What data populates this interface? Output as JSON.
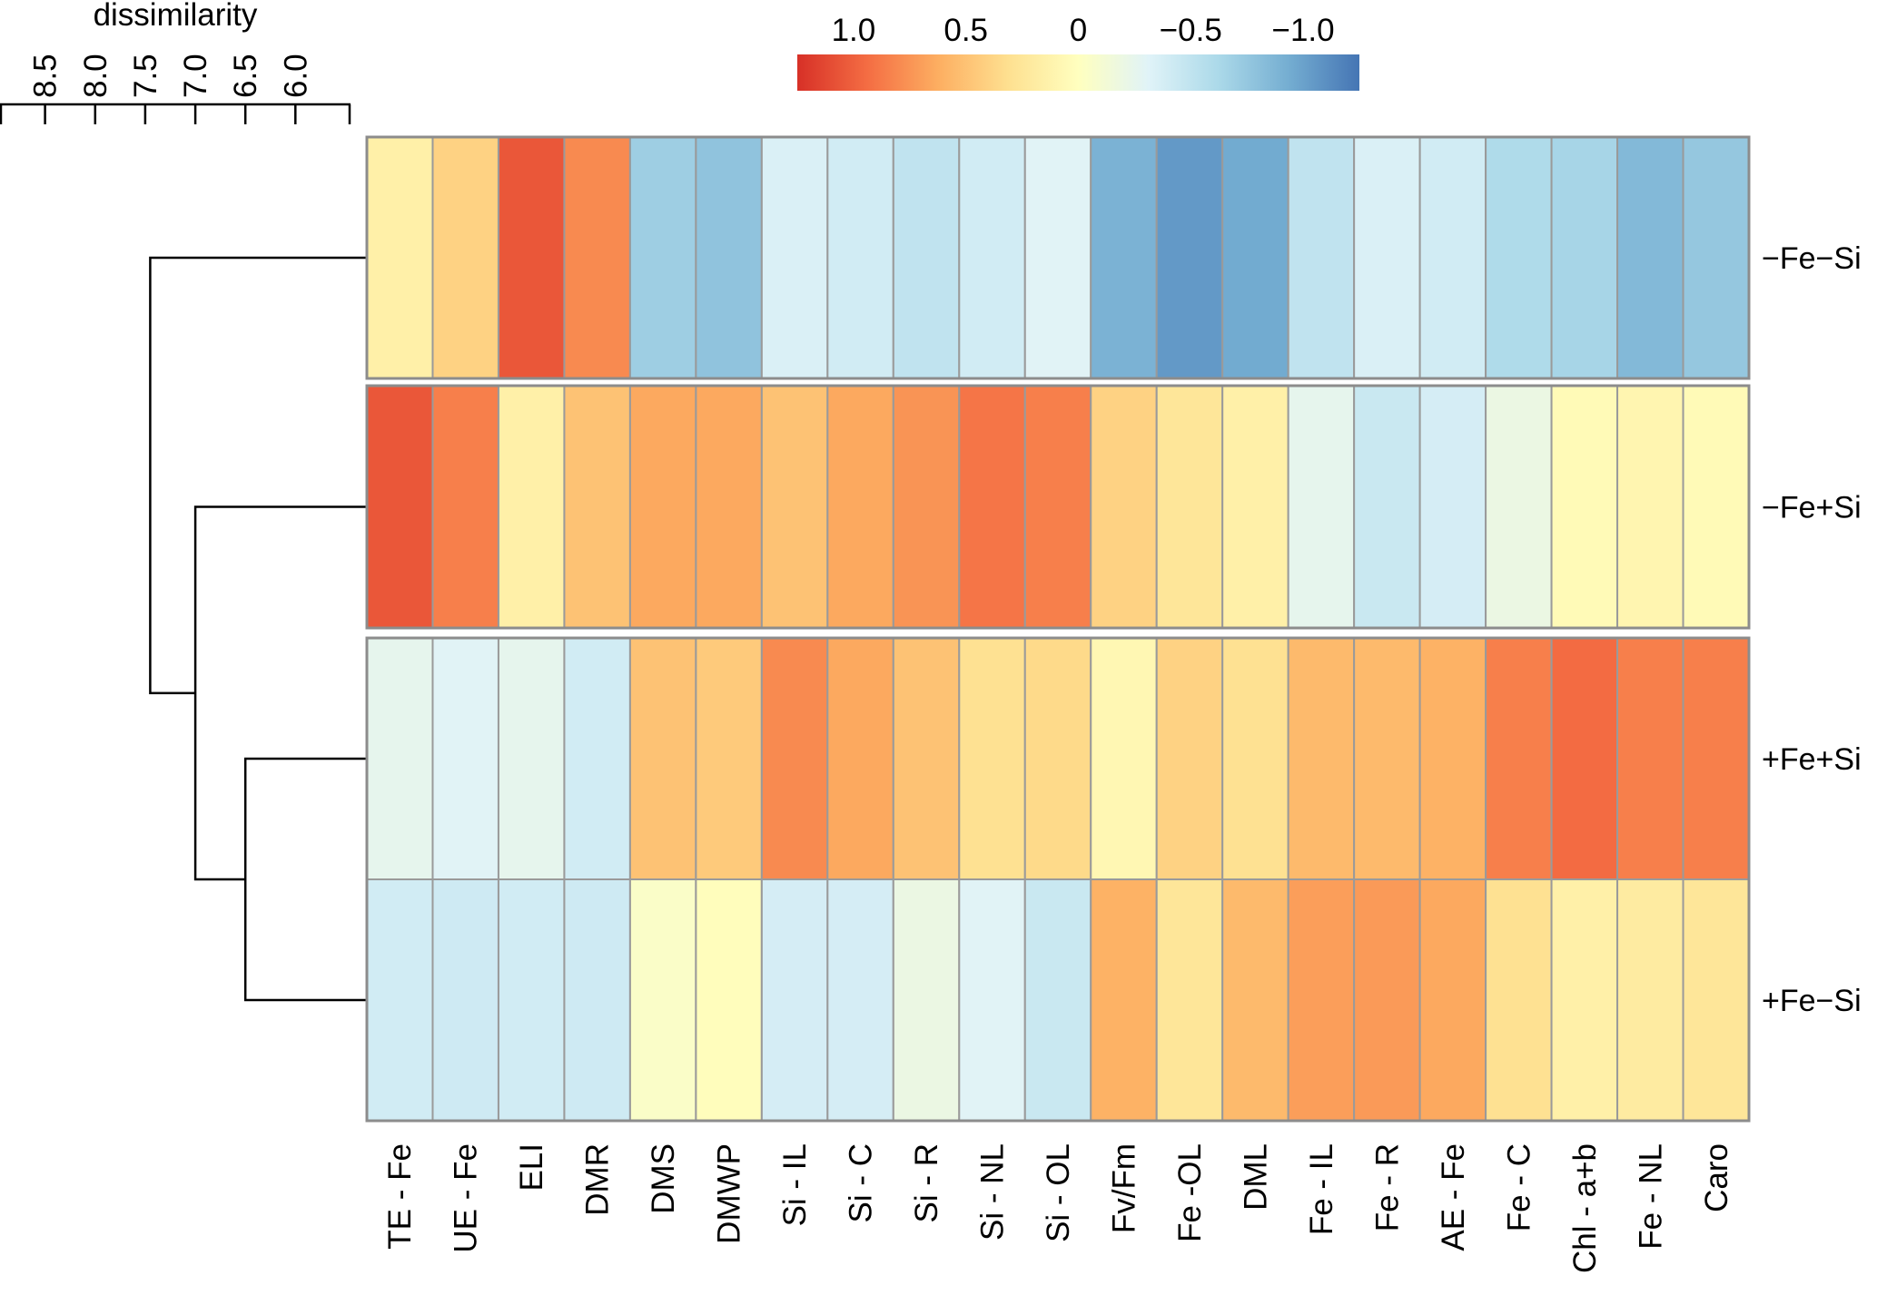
{
  "chart_data": {
    "type": "heatmap",
    "rows": [
      "−Fe−Si",
      "−Fe+Si",
      "+Fe+Si",
      "+Fe−Si"
    ],
    "columns": [
      "TE - Fe",
      "UE - Fe",
      "ELI",
      "DMR",
      "DMS",
      "DMWP",
      "Si - IL",
      "Si - C",
      "Si - R",
      "Si - NL",
      "Si - OL",
      "Fv/Fm",
      "Fe -OL",
      "DML",
      "Fe - IL",
      "Fe - R",
      "AE - Fe",
      "Fe - C",
      "Chl - a+b",
      "Fe - NL",
      "Caro"
    ],
    "values": [
      [
        0.15,
        0.4,
        1.05,
        0.8,
        -0.7,
        -0.78,
        -0.35,
        -0.4,
        -0.5,
        -0.4,
        -0.3,
        -0.9,
        -1.05,
        -0.95,
        -0.5,
        -0.35,
        -0.4,
        -0.6,
        -0.65,
        -0.85,
        -0.75
      ],
      [
        1.05,
        0.85,
        0.15,
        0.5,
        0.65,
        0.65,
        0.5,
        0.65,
        0.75,
        0.9,
        0.85,
        0.4,
        0.25,
        0.15,
        -0.25,
        -0.45,
        -0.38,
        -0.2,
        0.05,
        0.1,
        0.05
      ],
      [
        -0.25,
        -0.3,
        -0.25,
        -0.4,
        0.5,
        0.45,
        0.8,
        0.65,
        0.5,
        0.3,
        0.35,
        0.08,
        0.4,
        0.3,
        0.55,
        0.55,
        0.6,
        0.85,
        0.95,
        0.85,
        0.85
      ],
      [
        -0.4,
        -0.42,
        -0.4,
        -0.42,
        -0.05,
        0.02,
        -0.38,
        -0.38,
        -0.2,
        -0.3,
        -0.45,
        0.6,
        0.25,
        0.55,
        0.7,
        0.72,
        0.65,
        0.3,
        0.15,
        0.2,
        0.25
      ]
    ],
    "colorbar": {
      "ticks": [
        "1.0",
        "0.5",
        "0",
        "−0.5",
        "−1.0"
      ],
      "range": [
        1.25,
        -1.25
      ]
    },
    "dendrogram": {
      "axis_title": "dissimilarity",
      "ticks": [
        "8.5",
        "8.0",
        "7.5",
        "7.0",
        "6.5",
        "6.0"
      ],
      "tick_values": [
        8.5,
        8.0,
        7.5,
        7.0,
        6.5,
        6.0
      ],
      "axis_range": [
        8.95,
        5.45
      ],
      "merges": [
        {
          "a": 2,
          "b": 3,
          "height": 6.5
        },
        {
          "a": 1,
          "b": "m0",
          "height": 7.0
        },
        {
          "a": 0,
          "b": "m1",
          "height": 7.45
        }
      ]
    }
  }
}
